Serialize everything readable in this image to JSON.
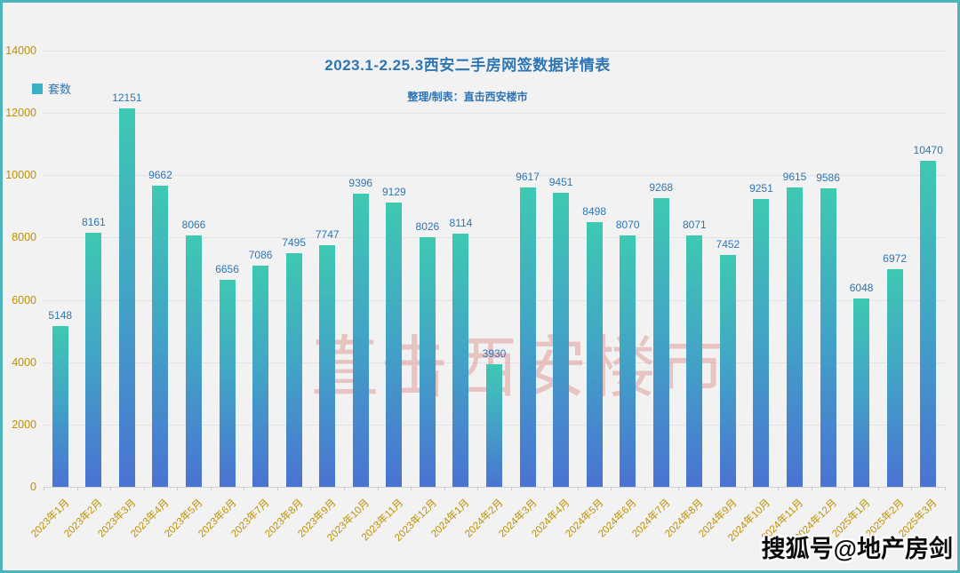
{
  "chart_data": {
    "type": "bar",
    "title": "2023.1-2.25.3西安二手房网签数据详情表",
    "subtitle": "整理/制表：直击西安楼市",
    "legend": [
      {
        "label": "套数",
        "color": "#38b1c4"
      }
    ],
    "legend_position": "top-left",
    "categories": [
      "2023年1月",
      "2023年2月",
      "2023年3月",
      "2023年4月",
      "2023年5月",
      "2023年6月",
      "2023年7月",
      "2023年8月",
      "2023年9月",
      "2023年10月",
      "2023年11月",
      "2023年12月",
      "2024年1月",
      "2024年2月",
      "2024年3月",
      "2024年4月",
      "2024年5月",
      "2024年6月",
      "2024年7月",
      "2024年8月",
      "2024年9月",
      "2024年10月",
      "2024年11月",
      "2024年12月",
      "2025年1月",
      "2025年2月",
      "2025年3月"
    ],
    "values": [
      5148,
      8161,
      12151,
      9662,
      8066,
      6656,
      7086,
      7495,
      7747,
      9396,
      9129,
      8026,
      8114,
      3930,
      9617,
      9451,
      8498,
      8070,
      9268,
      8071,
      7452,
      9251,
      9615,
      9586,
      6048,
      6972,
      10470
    ],
    "xlabel": "",
    "ylabel": "",
    "ylim": [
      0,
      14000
    ],
    "yticks": [
      0,
      2000,
      4000,
      6000,
      8000,
      10000,
      12000,
      14000
    ],
    "grid": true,
    "colors": {
      "bar_gradient_top": "#3ec9b2",
      "bar_gradient_mid": "#42a4c6",
      "bar_gradient_bottom": "#4a73d2",
      "value_label": "#2e75b6",
      "axis_tick_label": "#bf9000",
      "title_text": "#2e75b6",
      "frame_border": "#4db4ba",
      "background": "#f1f2f1"
    }
  },
  "watermarks": {
    "center": "直击西安楼市",
    "bottom_right": "搜狐号@地产房剑"
  }
}
